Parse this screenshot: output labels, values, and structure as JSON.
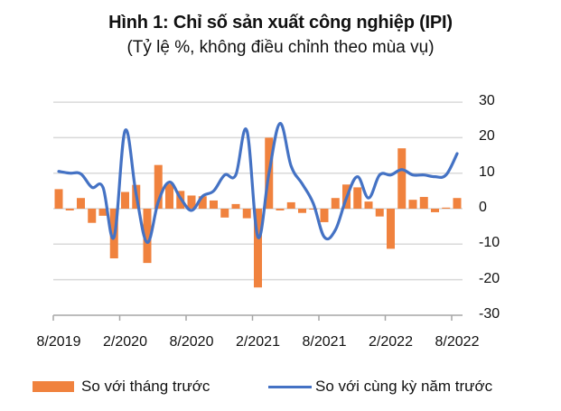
{
  "title": "Hình 1:  Chỉ số sản xuất công nghiệp (IPI)",
  "subtitle": "(Tỷ lệ %, không điều chỉnh theo mùa vụ)",
  "legend": {
    "bar": "So với tháng trước",
    "line": "So với cùng kỳ năm trước"
  },
  "colors": {
    "bar": "#f0823e",
    "line": "#4472c4",
    "grid": "#d9d9d9",
    "axis": "#a6a6a6"
  },
  "y_ticks": [
    "30",
    "20",
    "10",
    "0",
    "-10",
    "-20",
    "-30"
  ],
  "x_ticks": [
    "8/2019",
    "2/2020",
    "8/2020",
    "2/2021",
    "8/2021",
    "2/2022",
    "8/2022"
  ],
  "chart_data": {
    "type": "bar+line",
    "title": "Hình 1:  Chỉ số sản xuất công nghiệp (IPI)",
    "subtitle": "(Tỷ lệ %, không điều chỉnh theo mùa vụ)",
    "xlabel": "",
    "ylabel": "",
    "ylim": [
      -30,
      30
    ],
    "grid": true,
    "legend_position": "bottom",
    "categories": [
      "8/2019",
      "9/2019",
      "10/2019",
      "11/2019",
      "12/2019",
      "1/2020",
      "2/2020",
      "3/2020",
      "4/2020",
      "5/2020",
      "6/2020",
      "7/2020",
      "8/2020",
      "9/2020",
      "10/2020",
      "11/2020",
      "12/2020",
      "1/2021",
      "2/2021",
      "3/2021",
      "4/2021",
      "5/2021",
      "6/2021",
      "7/2021",
      "8/2021",
      "9/2021",
      "10/2021",
      "11/2021",
      "12/2021",
      "1/2022",
      "2/2022",
      "3/2022",
      "4/2022",
      "5/2022",
      "6/2022",
      "7/2022",
      "8/2022"
    ],
    "series": [
      {
        "name": "So với tháng trước",
        "type": "bar",
        "values": [
          5.5,
          -0.5,
          3.0,
          -4.0,
          -2.0,
          -14.0,
          4.7,
          6.7,
          -15.3,
          12.3,
          7.0,
          5.0,
          3.7,
          3.5,
          2.3,
          -2.5,
          1.3,
          -2.7,
          -22.2,
          20.0,
          -0.5,
          1.8,
          -1.2,
          0.0,
          -3.8,
          3.0,
          6.8,
          6.0,
          2.0,
          -2.2,
          -11.3,
          17.0,
          2.5,
          3.3,
          -1.0,
          0.3,
          3.0
        ]
      },
      {
        "name": "So với cùng kỳ năm trước",
        "type": "line",
        "values": [
          10.5,
          10.0,
          9.8,
          6.0,
          6.0,
          -8.0,
          22.0,
          4.0,
          -9.5,
          2.0,
          7.5,
          3.0,
          -0.5,
          3.5,
          5.0,
          9.5,
          9.5,
          22.0,
          -8.0,
          10.0,
          24.0,
          12.0,
          7.0,
          1.5,
          -8.0,
          -6.0,
          3.0,
          9.0,
          3.0,
          9.5,
          9.5,
          11.0,
          9.5,
          9.5,
          9.0,
          9.5,
          15.5
        ]
      }
    ]
  }
}
